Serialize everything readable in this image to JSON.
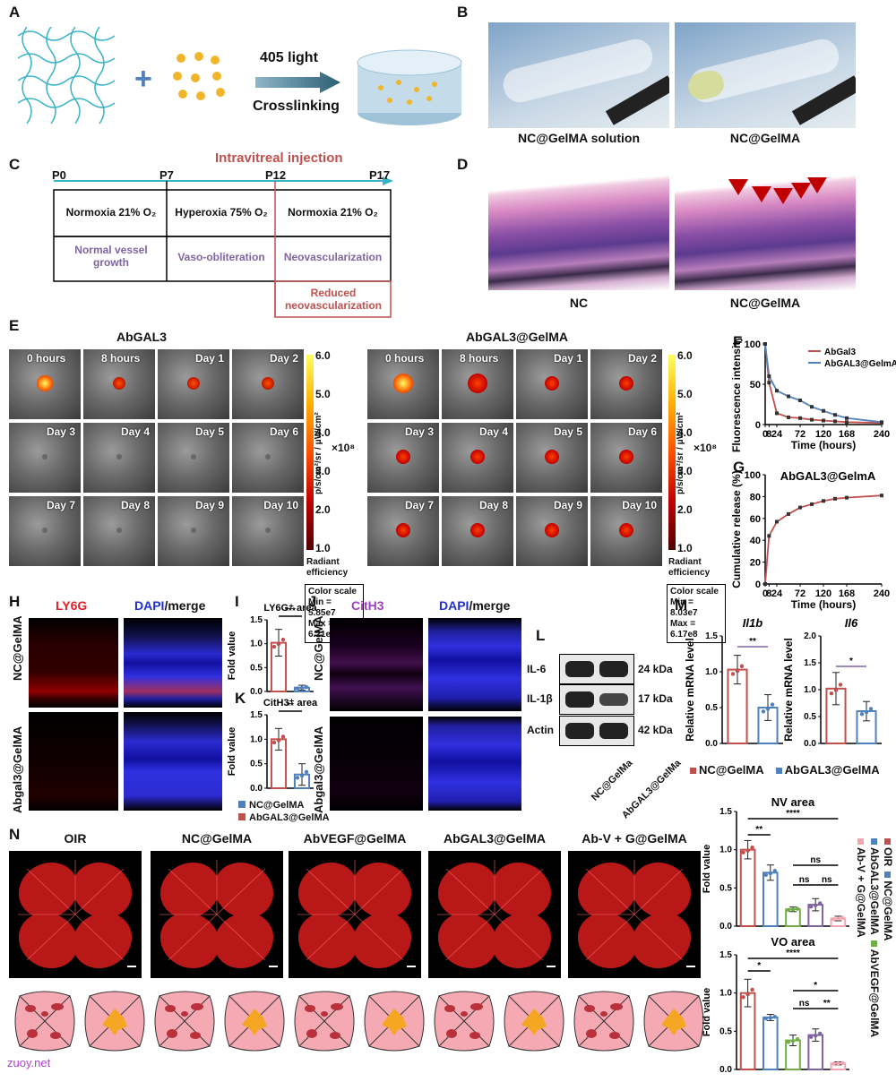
{
  "panels": {
    "A": {
      "label": "A",
      "light": "405 light",
      "process": "Crosslinking"
    },
    "B": {
      "label": "B",
      "captions": [
        "NC@GelMA solution",
        "NC@GelMA"
      ]
    },
    "C": {
      "label": "C",
      "title": "Intravitreal injection",
      "timepoints": [
        "P0",
        "P7",
        "P12",
        "P17"
      ],
      "conditions": [
        "Normoxia 21% O₂",
        "Hyperoxia 75% O₂",
        "Normoxia 21% O₂"
      ],
      "phases": [
        "Normal vessel growth",
        "Vaso-obliteration",
        "Neovascularization"
      ],
      "reduced": "Reduced neovascularization"
    },
    "D": {
      "label": "D",
      "captions": [
        "NC",
        "NC@GelMA"
      ]
    },
    "E": {
      "label": "E",
      "groups": [
        {
          "title": "AbGAL3",
          "times": [
            "0 hours",
            "8 hours",
            "Day 1",
            "Day 2",
            "Day 3",
            "Day 4",
            "Day 5",
            "Day 6",
            "Day 7",
            "Day 8",
            "Day 9",
            "Day 10"
          ],
          "scale_min": "Min = 5.85e7",
          "scale_max": "Max = 6.21e8"
        },
        {
          "title": "AbGAL3@GelMA",
          "times": [
            "0 hours",
            "8 hours",
            "Day 1",
            "Day 2",
            "Day 3",
            "Day 4",
            "Day 5",
            "Day 6",
            "Day 7",
            "Day 8",
            "Day 9",
            "Day 10"
          ],
          "scale_min": "Min = 8.03e7",
          "scale_max": "Max = 6.17e8"
        }
      ],
      "colorbar_ticks": [
        "6.0",
        "5.0",
        "4.0",
        "3.0",
        "2.0",
        "1.0"
      ],
      "multiplier": "×10⁸",
      "units": "p/s/cm²/sr / μW/cm²",
      "radiant": "Radiant efficiency",
      "color_scale": "Color scale"
    },
    "H": {
      "label": "H",
      "stain1": "LY6G",
      "stain2": "DAPI",
      "merge": "/merge",
      "rows": [
        "NC@GelMA",
        "Abgal3@GelMA"
      ]
    },
    "J": {
      "label": "J",
      "stain1": "CitH3",
      "stain2": "DAPI",
      "merge": "/merge",
      "rows": [
        "NC@GelMA",
        "Abgal3@GelMA"
      ]
    },
    "L": {
      "label": "L",
      "bands": [
        {
          "name": "IL-6",
          "kda": "24 kDa"
        },
        {
          "name": "IL-1β",
          "kda": "17 kDa"
        },
        {
          "name": "Actin",
          "kda": "42 kDa"
        }
      ],
      "lanes": [
        "NC@GelMa",
        "AbGAL3@GelMa"
      ]
    },
    "N": {
      "label": "N",
      "groups": [
        "OIR",
        "NC@GelMA",
        "AbVEGF@GelMA",
        "AbGAL3@GelMA",
        "Ab-V + G@GelMA"
      ]
    },
    "legendIK": [
      "NC@GelMA",
      "AbGAL3@GelMA"
    ],
    "legendM": [
      "NC@GelMA",
      "AbGAL3@GelMA"
    ],
    "legendN": [
      "OIR",
      "NC@GelMA",
      "AbGAL3@GelMA",
      "AbVEGF@GelMA",
      "Ab-V + G@GelMA"
    ]
  },
  "watermark": "zuoy.net",
  "colors": {
    "nc": "#c0504d",
    "ab": "#4f81bd",
    "vegf": "#70ad47",
    "purple": "#8064a2",
    "pink": "#f4a6b0",
    "arrow": "#c00000"
  },
  "chart_data": [
    {
      "id": "F",
      "type": "line",
      "label": "F",
      "xlabel": "Time (hours)",
      "ylabel": "Fluorescence intensity (%)",
      "x": [
        0,
        8,
        24,
        48,
        72,
        96,
        120,
        144,
        168,
        240
      ],
      "xticks": [
        "0",
        "8",
        "24",
        "72",
        "120",
        "168",
        "240"
      ],
      "ylim": [
        0,
        100
      ],
      "yticks": [
        "0",
        "50",
        "100"
      ],
      "series": [
        {
          "name": "AbGal3",
          "color": "#c0504d",
          "values": [
            100,
            52,
            14,
            9,
            8,
            6,
            5,
            4,
            3,
            2
          ]
        },
        {
          "name": "AbGAL3@GelmA",
          "color": "#4f81bd",
          "values": [
            100,
            60,
            42,
            35,
            30,
            22,
            17,
            12,
            8,
            3
          ]
        }
      ]
    },
    {
      "id": "G",
      "type": "line",
      "label": "G",
      "title": "AbGAL3@GelmA",
      "xlabel": "Time (hours)",
      "ylabel": "Cumulative release (%)",
      "x": [
        0,
        8,
        24,
        48,
        72,
        96,
        120,
        144,
        168,
        240
      ],
      "xticks": [
        "0",
        "8",
        "24",
        "72",
        "120",
        "168",
        "240"
      ],
      "ylim": [
        0,
        100
      ],
      "yticks": [
        "0",
        "20",
        "40",
        "60",
        "80",
        "100"
      ],
      "series": [
        {
          "name": "AbGAL3@GelmA",
          "color": "#c0504d",
          "values": [
            0,
            44,
            57,
            64,
            70,
            73,
            76,
            78,
            79,
            81
          ]
        }
      ]
    },
    {
      "id": "I",
      "type": "bar",
      "label": "I",
      "title": "LY6G⁺ area",
      "ylabel": "Fold value",
      "ylim": [
        0,
        1.5
      ],
      "yticks": [
        "0.0",
        "0.5",
        "1.0",
        "1.5"
      ],
      "categories": [
        "NC@GelMA",
        "AbGAL3@GelMA"
      ],
      "values": [
        1.02,
        0.08
      ],
      "errors": [
        0.28,
        0.05
      ],
      "significance": [
        "***"
      ]
    },
    {
      "id": "K",
      "type": "bar",
      "label": "K",
      "title": "CitH3⁺ area",
      "ylabel": "Fold value",
      "ylim": [
        0,
        1.5
      ],
      "yticks": [
        "0.0",
        "0.5",
        "1.0",
        "1.5"
      ],
      "categories": [
        "NC@GelMA",
        "AbGAL3@GelMA"
      ],
      "values": [
        1.0,
        0.28
      ],
      "errors": [
        0.22,
        0.22
      ],
      "significance": [
        "**"
      ]
    },
    {
      "id": "M1",
      "type": "bar",
      "label": "M",
      "title": "Il1b",
      "ylabel": "Relative mRNA level",
      "ylim": [
        0,
        1.5
      ],
      "yticks": [
        "0.0",
        "0.5",
        "1.0",
        "1.5"
      ],
      "categories": [
        "NC@GelMA",
        "AbGAL3@GelMA"
      ],
      "values": [
        1.03,
        0.5
      ],
      "errors": [
        0.2,
        0.18
      ],
      "significance": [
        "**"
      ]
    },
    {
      "id": "M2",
      "type": "bar",
      "title": "Il6",
      "ylabel": "Relative mRNA level",
      "ylim": [
        0,
        2.0
      ],
      "yticks": [
        "0.0",
        "0.5",
        "1.0",
        "1.5",
        "2.0"
      ],
      "categories": [
        "NC@GelMA",
        "AbGAL3@GelMA"
      ],
      "values": [
        1.02,
        0.6
      ],
      "errors": [
        0.3,
        0.18
      ],
      "significance": [
        "*"
      ]
    },
    {
      "id": "NV",
      "type": "bar",
      "title": "NV area",
      "ylabel": "Fold value",
      "ylim": [
        0,
        1.5
      ],
      "yticks": [
        "0.0",
        "0.5",
        "1.0",
        "1.5"
      ],
      "categories": [
        "OIR",
        "NC@GelMA",
        "AbVEGF@GelMA",
        "AbGAL3@GelMA",
        "Ab-V + G@GelMA"
      ],
      "values": [
        1.0,
        0.7,
        0.22,
        0.28,
        0.1
      ],
      "errors": [
        0.12,
        0.1,
        0.03,
        0.08,
        0.03
      ],
      "significance": [
        "**",
        "****",
        "ns",
        "ns",
        "ns"
      ]
    },
    {
      "id": "VO",
      "type": "bar",
      "title": "VO area",
      "ylabel": "Fold value",
      "ylim": [
        0,
        1.5
      ],
      "yticks": [
        "0.0",
        "0.5",
        "1.0",
        "1.5"
      ],
      "categories": [
        "OIR",
        "NC@GelMA",
        "AbVEGF@GelMA",
        "AbGAL3@GelMA",
        "Ab-V + G@GelMA"
      ],
      "values": [
        1.0,
        0.68,
        0.38,
        0.45,
        0.08
      ],
      "errors": [
        0.18,
        0.04,
        0.07,
        0.08,
        0.02
      ],
      "significance": [
        "*",
        "****",
        "ns",
        "*",
        "**"
      ]
    }
  ]
}
